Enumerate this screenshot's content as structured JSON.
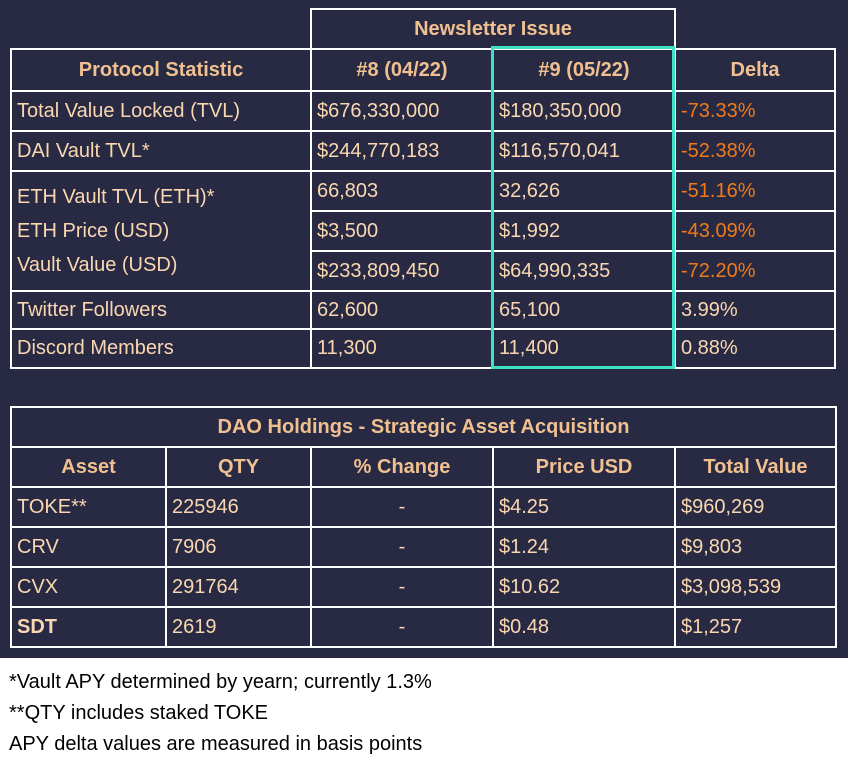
{
  "colors": {
    "panel_bg": "#282a44",
    "text": "#fad7b0",
    "header_text": "#f0c090",
    "negative": "#f07a1a",
    "highlight": "#3fe0c8"
  },
  "stats_table": {
    "super_header": "Newsletter Issue",
    "headers": [
      "Protocol Statistic",
      "#8 (04/22)",
      "#9 (05/22)",
      "Delta"
    ],
    "rows": [
      {
        "label": "Total Value Locked (TVL)",
        "issue8": "$676,330,000",
        "issue9": "$180,350,000",
        "delta": "-73.33%"
      },
      {
        "label": "DAI Vault TVL*",
        "issue8": "$244,770,183",
        "issue9": "$116,570,041",
        "delta": "-52.38%"
      },
      {
        "label": "ETH Vault TVL (ETH)*",
        "issue8": "66,803",
        "issue9": "32,626",
        "delta": "-51.16%"
      },
      {
        "label": "ETH Price (USD)",
        "issue8": "$3,500",
        "issue9": "$1,992",
        "delta": "-43.09%"
      },
      {
        "label": "Vault Value (USD)",
        "issue8": "$233,809,450",
        "issue9": "$64,990,335",
        "delta": "-72.20%"
      },
      {
        "label": "Twitter Followers",
        "issue8": "62,600",
        "issue9": "65,100",
        "delta": "3.99%"
      },
      {
        "label": "Discord Members",
        "issue8": "11,300",
        "issue9": "11,400",
        "delta": "0.88%"
      }
    ]
  },
  "holdings_table": {
    "title": "DAO Holdings - Strategic Asset Acquisition",
    "headers": [
      "Asset",
      "QTY",
      "% Change",
      "Price USD",
      "Total Value"
    ],
    "rows": [
      {
        "asset": "TOKE**",
        "qty": "225946",
        "change": "-",
        "price": "$4.25",
        "total": "$960,269"
      },
      {
        "asset": "CRV",
        "qty": "7906",
        "change": "-",
        "price": "$1.24",
        "total": "$9,803"
      },
      {
        "asset": "CVX",
        "qty": "291764",
        "change": "-",
        "price": "$10.62",
        "total": "$3,098,539"
      },
      {
        "asset": "SDT",
        "qty": "2619",
        "change": "-",
        "price": "$0.48",
        "total": "$1,257"
      }
    ]
  },
  "footnotes": [
    "*Vault APY determined by yearn; currently 1.3%",
    "**QTY includes staked TOKE",
    "APY delta values are measured in basis points"
  ]
}
